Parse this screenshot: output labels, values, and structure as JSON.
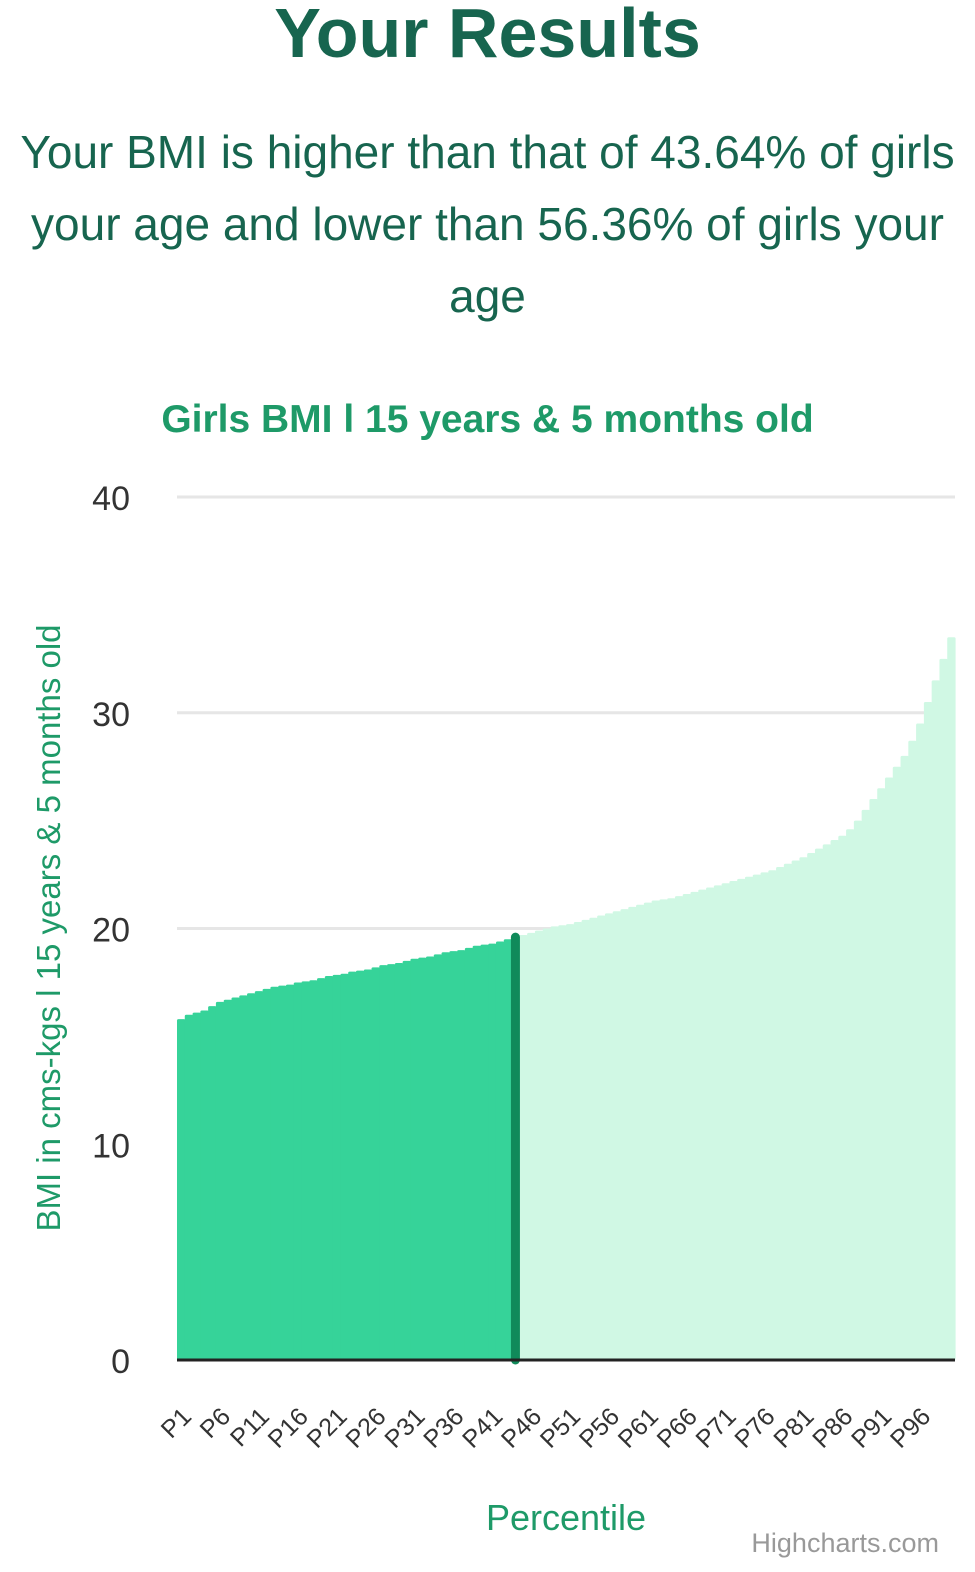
{
  "header": {
    "title": "Your Results",
    "summary": "Your BMI is higher than that of 43.64% of girls your age and lower than 56.36% of girls your age"
  },
  "credit": "Highcharts.com",
  "colors": {
    "below": "#36d399",
    "above": "#d0f8e4",
    "marker": "#108a5a",
    "grid": "#e6e6e6",
    "axis": "#222222",
    "accent": "#1e9a68"
  },
  "chart_data": {
    "type": "area",
    "title": "Girls BMI l 15 years & 5 months old",
    "xlabel": "Percentile",
    "ylabel": "BMI in cms-kgs l 15 years & 5 months old",
    "ylim": [
      0,
      40
    ],
    "yticks": [
      0,
      10,
      20,
      30,
      40
    ],
    "xtick_labels": [
      "P1",
      "P6",
      "P11",
      "P16",
      "P21",
      "P26",
      "P31",
      "P36",
      "P41",
      "P46",
      "P51",
      "P56",
      "P61",
      "P66",
      "P71",
      "P76",
      "P81",
      "P86",
      "P91",
      "P96"
    ],
    "grid": true,
    "legend": "none",
    "marker_percentile": 44,
    "percentiles": [
      1,
      2,
      3,
      4,
      5,
      6,
      7,
      8,
      9,
      10,
      11,
      12,
      13,
      14,
      15,
      16,
      17,
      18,
      19,
      20,
      21,
      22,
      23,
      24,
      25,
      26,
      27,
      28,
      29,
      30,
      31,
      32,
      33,
      34,
      35,
      36,
      37,
      38,
      39,
      40,
      41,
      42,
      43,
      44,
      45,
      46,
      47,
      48,
      49,
      50,
      51,
      52,
      53,
      54,
      55,
      56,
      57,
      58,
      59,
      60,
      61,
      62,
      63,
      64,
      65,
      66,
      67,
      68,
      69,
      70,
      71,
      72,
      73,
      74,
      75,
      76,
      77,
      78,
      79,
      80,
      81,
      82,
      83,
      84,
      85,
      86,
      87,
      88,
      89,
      90,
      91,
      92,
      93,
      94,
      95,
      96,
      97,
      98,
      99,
      100
    ],
    "bmi": [
      15.8,
      16.0,
      16.1,
      16.2,
      16.4,
      16.6,
      16.7,
      16.8,
      16.9,
      17.0,
      17.1,
      17.2,
      17.3,
      17.35,
      17.4,
      17.5,
      17.55,
      17.6,
      17.7,
      17.8,
      17.85,
      17.9,
      18.0,
      18.05,
      18.1,
      18.2,
      18.3,
      18.35,
      18.4,
      18.5,
      18.6,
      18.65,
      18.7,
      18.8,
      18.9,
      18.95,
      19.0,
      19.1,
      19.2,
      19.25,
      19.3,
      19.4,
      19.5,
      19.6,
      19.7,
      19.8,
      19.9,
      20.0,
      20.1,
      20.15,
      20.2,
      20.3,
      20.4,
      20.5,
      20.6,
      20.7,
      20.8,
      20.9,
      21.0,
      21.1,
      21.2,
      21.3,
      21.35,
      21.4,
      21.5,
      21.6,
      21.7,
      21.8,
      21.9,
      22.0,
      22.1,
      22.2,
      22.3,
      22.4,
      22.5,
      22.6,
      22.7,
      22.85,
      23.0,
      23.15,
      23.3,
      23.5,
      23.7,
      23.9,
      24.1,
      24.3,
      24.6,
      25.0,
      25.5,
      26.0,
      26.5,
      27.0,
      27.5,
      28.0,
      28.7,
      29.5,
      30.5,
      31.5,
      32.5,
      33.5
    ]
  }
}
